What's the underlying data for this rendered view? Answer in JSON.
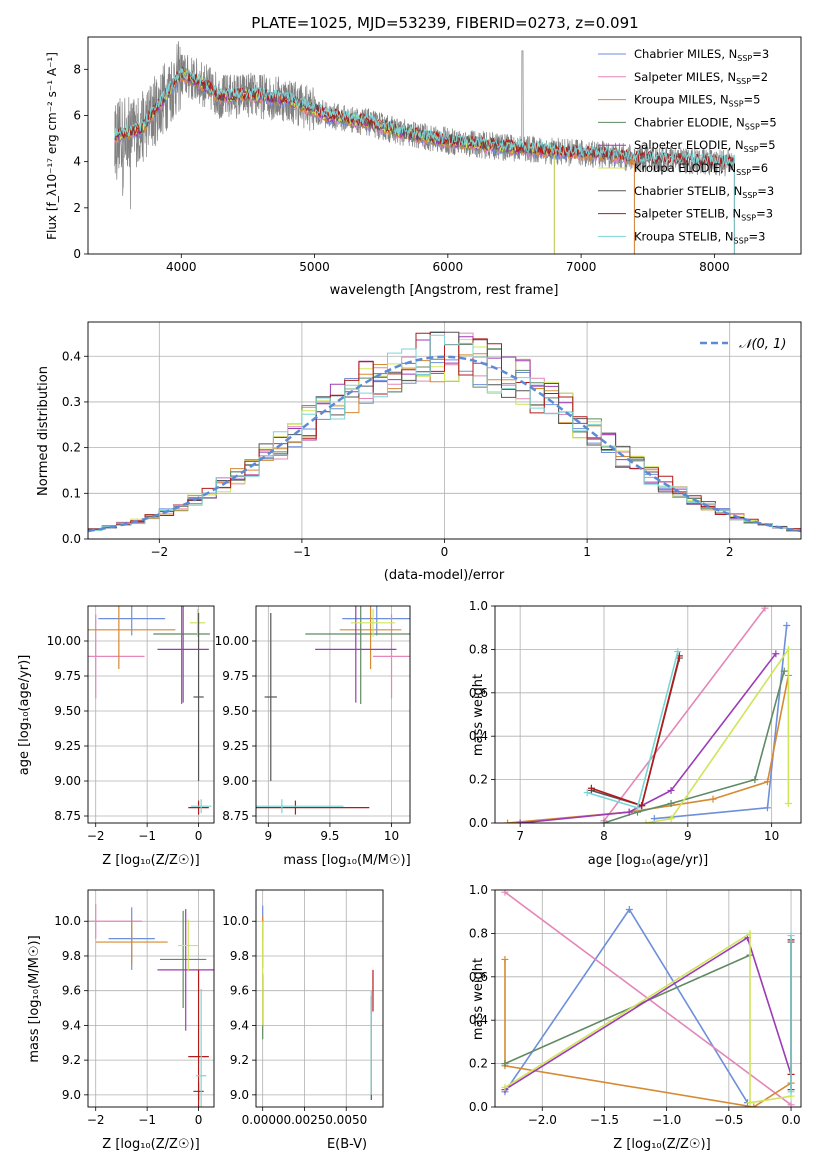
{
  "figure": {
    "title": "PLATE=1025, MJD=53239, FIBERID=0273, z=0.091"
  },
  "colors": {
    "chabrier_miles": "#6d8fdc",
    "salpeter_miles": "#e486b8",
    "kroupa_miles": "#d68a33",
    "chabrier_elodie": "#5f8a63",
    "salpeter_elodie": "#9c3bb5",
    "kroupa_elodie": "#cfe55a",
    "chabrier_stelib": "#555555",
    "salpeter_stelib": "#b31a1a",
    "kroupa_stelib": "#7ad6d6",
    "data": "#808080",
    "normal": "#5b8bd6",
    "grid": "#b0b0b0"
  },
  "legend_spectrum": [
    {
      "base": "Chabrier MILES, N",
      "sub": "SSP",
      "value": "=3"
    },
    {
      "base": "Salpeter MILES, N",
      "sub": "SSP",
      "value": "=2"
    },
    {
      "base": "Kroupa MILES, N",
      "sub": "SSP",
      "value": "=5"
    },
    {
      "base": "Chabrier ELODIE, N",
      "sub": "SSP",
      "value": "=5"
    },
    {
      "base": "Salpeter ELODIE, N",
      "sub": "SSP",
      "value": "=5"
    },
    {
      "base": "Kroupa ELODIE, N",
      "sub": "SSP",
      "value": "=6"
    },
    {
      "base": "Chabrier STELIB, N",
      "sub": "SSP",
      "value": "=3"
    },
    {
      "base": "Salpeter STELIB, N",
      "sub": "SSP",
      "value": "=3"
    },
    {
      "base": "Kroupa STELIB, N",
      "sub": "SSP",
      "value": "=3"
    }
  ],
  "legend_residual": "𝒩(0, 1)",
  "axes": {
    "spectrum": {
      "xlabel": "wavelength [Angstrom, rest frame]",
      "ylabel": "Flux [f_λ10⁻¹⁷ erg cm⁻² s⁻¹ A⁻¹]"
    },
    "residual": {
      "xlabel": "(data-model)/error",
      "ylabel": "Normed distribution"
    },
    "age_z": {
      "xlabel": "Z [log₁₀(Z/Z☉)]",
      "ylabel": "age  [log₁₀(age/yr)]"
    },
    "age_mass": {
      "xlabel": "mass [log₁₀(M/M☉)]"
    },
    "weight_age": {
      "xlabel": "age  [log₁₀(age/yr)]",
      "ylabel": "mass weight"
    },
    "mass_z": {
      "xlabel": "Z [log₁₀(Z/Z☉)]",
      "ylabel": "mass [log₁₀(M/M☉)]"
    },
    "mass_ebv": {
      "xlabel": "E(B-V)"
    },
    "weight_z": {
      "xlabel": "Z [log₁₀(Z/Z☉)]",
      "ylabel": "mass weight"
    }
  },
  "chart_data": [
    {
      "type": "line",
      "title": "PLATE=1025, MJD=53239, FIBERID=0273, z=0.091",
      "xlabel": "wavelength [Angstrom, rest frame]",
      "ylabel": "Flux [f_λ10⁻¹⁷ erg cm⁻² s⁻¹ A⁻¹]",
      "xlim": [
        3300,
        8650
      ],
      "ylim": [
        0,
        9.4
      ],
      "xticks": [
        4000,
        5000,
        6000,
        7000,
        8000
      ],
      "yticks": [
        0,
        2,
        4,
        6,
        8
      ],
      "grid": false,
      "legend": "top-right",
      "continuum": {
        "x": [
          3500,
          3700,
          3850,
          4000,
          4150,
          4300,
          4500,
          4800,
          5100,
          5400,
          5700,
          6000,
          6300,
          6600,
          6900,
          7200,
          7400,
          7600,
          7900,
          8150
        ],
        "y": [
          5.1,
          5.4,
          6.6,
          7.8,
          7.4,
          6.8,
          6.9,
          6.7,
          6.0,
          5.7,
          5.2,
          4.9,
          4.7,
          4.55,
          4.4,
          4.3,
          4.15,
          4.1,
          4.0,
          3.95
        ]
      },
      "series": [
        "Chabrier MILES",
        "Salpeter MILES",
        "Kroupa MILES",
        "Chabrier ELODIE",
        "Salpeter ELODIE",
        "Kroupa ELODIE",
        "Chabrier STELIB",
        "Salpeter STELIB",
        "Kroupa STELIB"
      ],
      "series_extent": [
        [
          3500,
          7400
        ],
        [
          3500,
          7400
        ],
        [
          3500,
          7400
        ],
        [
          3500,
          6800
        ],
        [
          3500,
          6800
        ],
        [
          3500,
          6800
        ],
        [
          3500,
          8150
        ],
        [
          3500,
          8150
        ],
        [
          3500,
          8150
        ]
      ]
    },
    {
      "type": "area",
      "xlabel": "(data-model)/error",
      "ylabel": "Normed distribution",
      "xlim": [
        -2.5,
        2.5
      ],
      "ylim": [
        0,
        0.475
      ],
      "xticks": [
        -2,
        -1,
        0,
        1,
        2
      ],
      "yticks": [
        0.0,
        0.1,
        0.2,
        0.3,
        0.4
      ],
      "grid": true,
      "legend": "top-right",
      "bins": {
        "start": -2.5,
        "width": 0.1,
        "count": 50
      },
      "normal": {
        "name": "𝒩(0, 1)",
        "mu": 0,
        "sigma": 1
      }
    },
    {
      "type": "scatter",
      "xlabel": "Z [log₁₀(Z/Z☉)]",
      "ylabel": "age  [log₁₀(age/yr)]",
      "xlim": [
        -2.15,
        0.3
      ],
      "ylim": [
        8.7,
        10.25
      ],
      "xticks": [
        -2,
        -1,
        0
      ],
      "yticks": [
        8.75,
        9.0,
        9.25,
        9.5,
        9.75,
        10.0
      ],
      "grid": true,
      "points": [
        {
          "series": "Chabrier MILES",
          "x": -1.3,
          "y": 10.16,
          "xerr": 0.65,
          "yerr": 0.12
        },
        {
          "series": "Salpeter MILES",
          "x": -2.0,
          "y": 9.89,
          "xerr": 0.95,
          "yerr": 0.3
        },
        {
          "series": "Kroupa MILES",
          "x": -1.55,
          "y": 10.08,
          "xerr": 1.1,
          "yerr": 0.28
        },
        {
          "series": "Chabrier ELODIE",
          "x": -0.33,
          "y": 10.05,
          "xerr": 0.55,
          "yerr": 0.5
        },
        {
          "series": "Salpeter ELODIE",
          "x": -0.3,
          "y": 9.94,
          "xerr": 0.5,
          "yerr": 0.38
        },
        {
          "series": "Kroupa ELODIE",
          "x": -0.02,
          "y": 10.13,
          "xerr": 0.15,
          "yerr": 0.1
        },
        {
          "series": "Chabrier STELIB",
          "x": 0.0,
          "y": 9.6,
          "xerr": 0.1,
          "yerr": 0.6
        },
        {
          "series": "Salpeter STELIB",
          "x": 0.0,
          "y": 8.81,
          "xerr": 0.2,
          "yerr": 0.05
        },
        {
          "series": "Kroupa STELIB",
          "x": 0.05,
          "y": 8.82,
          "xerr": 0.2,
          "yerr": 0.05
        }
      ]
    },
    {
      "type": "scatter",
      "xlabel": "mass [log₁₀(M/M☉)]",
      "xlim": [
        8.9,
        10.15
      ],
      "ylim": [
        8.7,
        10.25
      ],
      "xticks": [
        9.0,
        9.5,
        10.0
      ],
      "yticks": [
        8.75,
        9.0,
        9.25,
        9.5,
        9.75,
        10.0
      ],
      "grid": true,
      "points": [
        {
          "series": "Chabrier MILES",
          "x": 9.88,
          "y": 10.16,
          "xerr": 0.28,
          "yerr": 0.12
        },
        {
          "series": "Salpeter MILES",
          "x": 10.0,
          "y": 9.89,
          "xerr": 0.15,
          "yerr": 0.3
        },
        {
          "series": "Kroupa MILES",
          "x": 9.83,
          "y": 10.08,
          "xerr": 0.25,
          "yerr": 0.28
        },
        {
          "series": "Chabrier ELODIE",
          "x": 9.75,
          "y": 10.05,
          "xerr": 0.45,
          "yerr": 0.5
        },
        {
          "series": "Salpeter ELODIE",
          "x": 9.71,
          "y": 9.94,
          "xerr": 0.33,
          "yerr": 0.38
        },
        {
          "series": "Kroupa ELODIE",
          "x": 9.85,
          "y": 10.13,
          "xerr": 0.18,
          "yerr": 0.1
        },
        {
          "series": "Chabrier STELIB",
          "x": 9.02,
          "y": 9.6,
          "xerr": 0.05,
          "yerr": 0.6
        },
        {
          "series": "Salpeter STELIB",
          "x": 9.22,
          "y": 8.81,
          "xerr": 0.6,
          "yerr": 0.05
        },
        {
          "series": "Kroupa STELIB",
          "x": 9.11,
          "y": 8.82,
          "xerr": 0.5,
          "yerr": 0.05
        }
      ]
    },
    {
      "type": "line",
      "xlabel": "age  [log₁₀(age/yr)]",
      "ylabel": "mass weight",
      "xlim": [
        6.7,
        10.35
      ],
      "ylim": [
        0,
        1.0
      ],
      "xticks": [
        7,
        8,
        9,
        10
      ],
      "yticks": [
        0.0,
        0.2,
        0.4,
        0.6,
        0.8,
        1.0
      ],
      "grid": true,
      "series": [
        {
          "name": "Chabrier MILES",
          "x": [
            8.6,
            9.95,
            10.18
          ],
          "y": [
            0.02,
            0.07,
            0.91
          ]
        },
        {
          "name": "Salpeter MILES",
          "x": [
            8.0,
            9.92
          ],
          "y": [
            0.01,
            0.99
          ]
        },
        {
          "name": "Kroupa MILES",
          "x": [
            6.85,
            8.3,
            9.3,
            9.95,
            10.2
          ],
          "y": [
            0.0,
            0.05,
            0.11,
            0.19,
            0.68
          ]
        },
        {
          "name": "Chabrier ELODIE",
          "x": [
            8.0,
            8.4,
            8.8,
            9.8,
            10.15
          ],
          "y": [
            0.0,
            0.05,
            0.09,
            0.2,
            0.7
          ]
        },
        {
          "name": "Salpeter ELODIE",
          "x": [
            7.0,
            8.3,
            8.8,
            10.05
          ],
          "y": [
            0.0,
            0.05,
            0.15,
            0.78
          ]
        },
        {
          "name": "Kroupa ELODIE",
          "x": [
            8.5,
            8.8,
            10.2,
            10.2
          ],
          "y": [
            0.0,
            0.02,
            0.8,
            0.09
          ]
        },
        {
          "name": "Chabrier STELIB",
          "x": [
            7.85,
            8.45,
            8.9
          ],
          "y": [
            0.15,
            0.08,
            0.76
          ]
        },
        {
          "name": "Salpeter STELIB",
          "x": [
            7.85,
            8.45,
            8.9
          ],
          "y": [
            0.16,
            0.08,
            0.77
          ]
        },
        {
          "name": "Kroupa STELIB",
          "x": [
            7.8,
            8.4,
            8.88
          ],
          "y": [
            0.14,
            0.07,
            0.79
          ]
        }
      ]
    },
    {
      "type": "scatter",
      "xlabel": "Z [log₁₀(Z/Z☉)]",
      "ylabel": "mass [log₁₀(M/M☉)]",
      "xlim": [
        -2.15,
        0.3
      ],
      "ylim": [
        8.93,
        10.18
      ],
      "xticks": [
        -2,
        -1,
        0
      ],
      "yticks": [
        9.0,
        9.2,
        9.4,
        9.6,
        9.8,
        10.0
      ],
      "grid": true,
      "points": [
        {
          "series": "Chabrier MILES",
          "x": -1.3,
          "y": 9.9,
          "xerr": 0.45,
          "yerr": 0.18
        },
        {
          "series": "Salpeter MILES",
          "x": -2.0,
          "y": 10.0,
          "xerr": 0.9,
          "yerr": 0.1
        },
        {
          "series": "Kroupa MILES",
          "x": -1.3,
          "y": 9.88,
          "xerr": 0.7,
          "yerr": 0.13
        },
        {
          "series": "Chabrier ELODIE",
          "x": -0.3,
          "y": 9.78,
          "xerr": 0.45,
          "yerr": 0.28
        },
        {
          "series": "Salpeter ELODIE",
          "x": -0.25,
          "y": 9.72,
          "xerr": 0.55,
          "yerr": 0.35
        },
        {
          "series": "Kroupa ELODIE",
          "x": -0.2,
          "y": 9.86,
          "xerr": 0.2,
          "yerr": 0.15
        },
        {
          "series": "Chabrier STELIB",
          "x": 0.0,
          "y": 9.02,
          "xerr": 0.1,
          "yerr": 0.05
        },
        {
          "series": "Salpeter STELIB",
          "x": 0.0,
          "y": 9.22,
          "xerr": 0.2,
          "yerr": 0.5
        },
        {
          "series": "Kroupa STELIB",
          "x": 0.05,
          "y": 9.11,
          "xerr": 0.1,
          "yerr": 0.5
        }
      ]
    },
    {
      "type": "scatter",
      "xlabel": "E(B-V)",
      "xlim": [
        -0.0004,
        0.0072
      ],
      "ylim": [
        8.93,
        10.18
      ],
      "xticks": [
        0.0,
        0.0025,
        0.005
      ],
      "xticklabels": [
        "0.0000",
        "0.0025",
        "0.0050"
      ],
      "yticks": [
        9.0,
        9.2,
        9.4,
        9.6,
        9.8,
        10.0
      ],
      "grid": true,
      "points": [
        {
          "series": "Chabrier MILES",
          "x": 0.0,
          "y": 10.03,
          "yerr": 0.06
        },
        {
          "series": "Salpeter MILES",
          "x": 0.0,
          "y": 9.95,
          "yerr": 0.06
        },
        {
          "series": "Kroupa MILES",
          "x": 0.0,
          "y": 9.88,
          "yerr": 0.15
        },
        {
          "series": "Chabrier ELODIE",
          "x": 0.0,
          "y": 9.5,
          "yerr": 0.18
        },
        {
          "series": "Salpeter ELODIE",
          "x": 0.0,
          "y": 9.55,
          "yerr": 0.15
        },
        {
          "series": "Kroupa ELODIE",
          "x": 0.0,
          "y": 9.7,
          "yerr": 0.3
        },
        {
          "series": "Chabrier STELIB",
          "x": 0.0065,
          "y": 9.27,
          "yerr": 0.3
        },
        {
          "series": "Salpeter STELIB",
          "x": 0.0066,
          "y": 9.6,
          "yerr": 0.12
        },
        {
          "series": "Kroupa STELIB",
          "x": 0.0065,
          "y": 9.3,
          "yerr": 0.3
        }
      ]
    },
    {
      "type": "line",
      "xlabel": "Z [log₁₀(Z/Z☉)]",
      "ylabel": "mass weight",
      "xlim": [
        -2.38,
        0.08
      ],
      "ylim": [
        0,
        1.0
      ],
      "xticks": [
        -2.0,
        -1.5,
        -1.0,
        -0.5,
        0.0
      ],
      "yticks": [
        0.0,
        0.2,
        0.4,
        0.6,
        0.8,
        1.0
      ],
      "grid": true,
      "series": [
        {
          "name": "Chabrier MILES",
          "x": [
            -2.3,
            -1.3,
            -0.35
          ],
          "y": [
            0.07,
            0.91,
            0.02
          ]
        },
        {
          "name": "Salpeter MILES",
          "x": [
            -2.3,
            0.0
          ],
          "y": [
            0.99,
            0.01
          ]
        },
        {
          "name": "Kroupa MILES",
          "x": [
            -2.3,
            -2.3,
            -0.3,
            0.0
          ],
          "y": [
            0.68,
            0.19,
            0.0,
            0.11
          ]
        },
        {
          "name": "Chabrier ELODIE",
          "x": [
            -2.3,
            -0.33
          ],
          "y": [
            0.2,
            0.7
          ]
        },
        {
          "name": "Salpeter ELODIE",
          "x": [
            -2.3,
            -0.35,
            0.0
          ],
          "y": [
            0.08,
            0.78,
            0.15
          ]
        },
        {
          "name": "Kroupa ELODIE",
          "x": [
            -2.3,
            -0.33,
            -0.33,
            0.0
          ],
          "y": [
            0.09,
            0.8,
            0.02,
            0.05
          ]
        },
        {
          "name": "Chabrier STELIB",
          "x": [
            0.0,
            0.0
          ],
          "y": [
            0.08,
            0.76
          ]
        },
        {
          "name": "Salpeter STELIB",
          "x": [
            0.0,
            0.0
          ],
          "y": [
            0.15,
            0.77
          ]
        },
        {
          "name": "Kroupa STELIB",
          "x": [
            0.0,
            0.0
          ],
          "y": [
            0.07,
            0.79
          ]
        }
      ]
    }
  ]
}
